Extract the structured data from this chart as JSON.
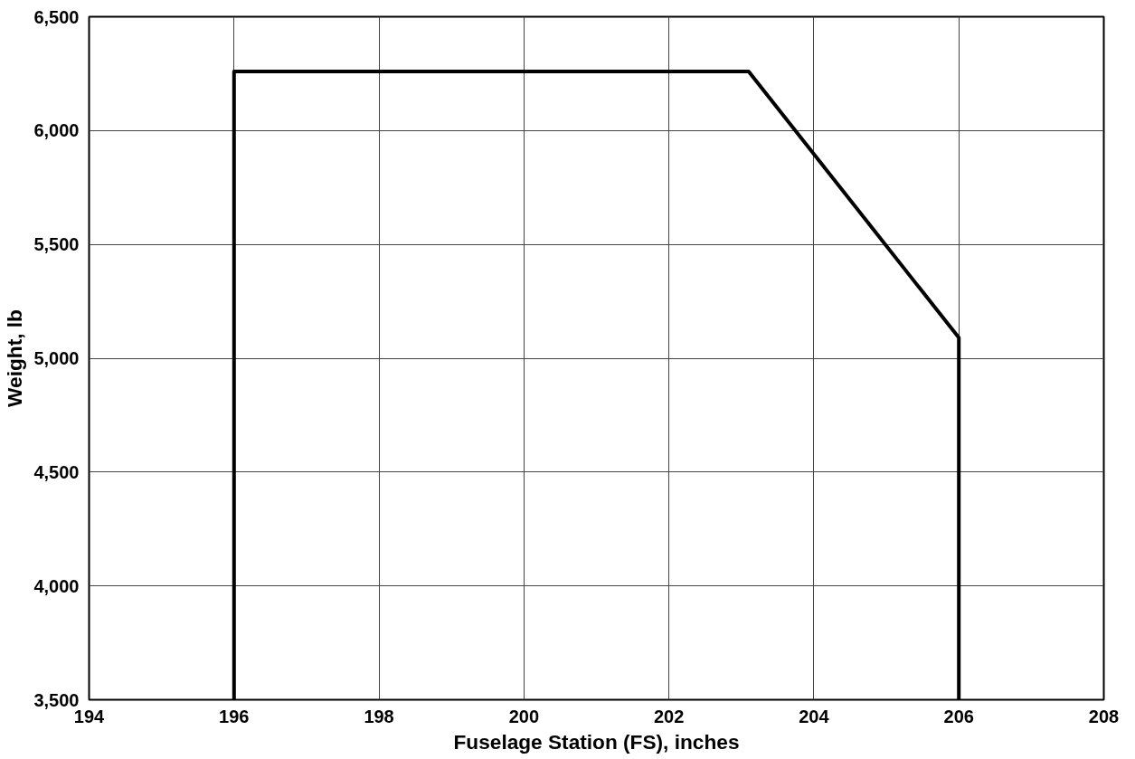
{
  "chart_data": {
    "type": "line",
    "xlabel": "Fuselage Station (FS), inches",
    "ylabel": "Weight, lb",
    "x": [
      196,
      196,
      203.1,
      206,
      206
    ],
    "values": [
      3500,
      6260,
      6260,
      5090,
      3500
    ],
    "color": "#000000",
    "xlim": [
      194,
      208
    ],
    "xticks": [
      194,
      196,
      198,
      200,
      202,
      204,
      206,
      208
    ],
    "ylim": [
      3500,
      6500
    ],
    "yticks": [
      {
        "value": 3500,
        "label": "3,500"
      },
      {
        "value": 4000,
        "label": "4,000"
      },
      {
        "value": 4500,
        "label": "4,500"
      },
      {
        "value": 5000,
        "label": "5,000"
      },
      {
        "value": 5500,
        "label": "5,500"
      },
      {
        "value": 6000,
        "label": "6,000"
      },
      {
        "value": 6500,
        "label": "6,500"
      }
    ],
    "grid": true,
    "line_style": "solid",
    "marker": "none"
  }
}
